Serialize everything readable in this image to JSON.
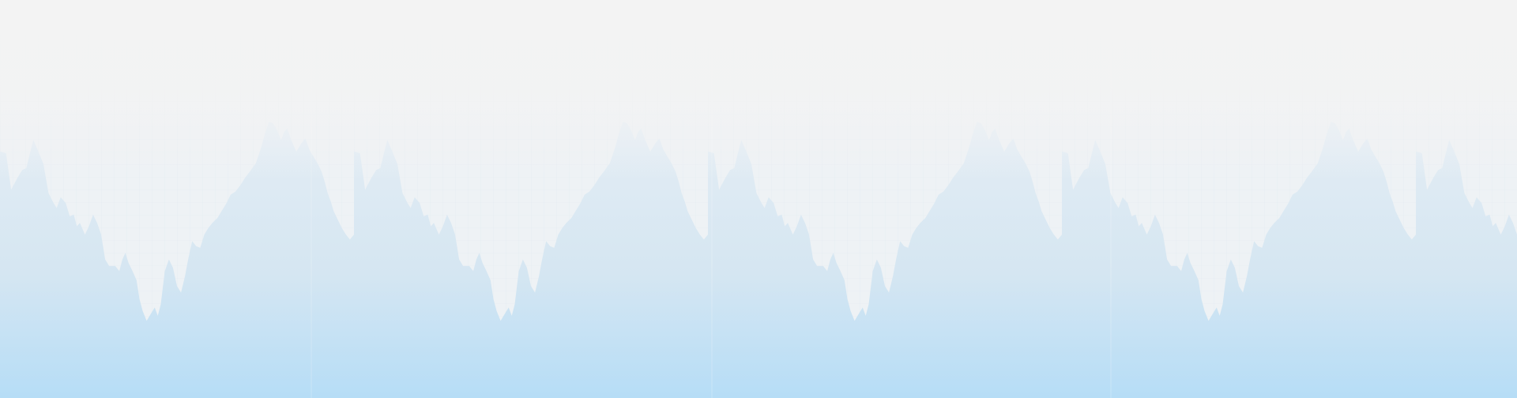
{
  "background": {
    "top_color": "#f3f3f3",
    "mountain_color_light": "#e4edf4",
    "mountain_color_mid": "#d5e6f2",
    "mountain_color_deep": "#b6ddf6",
    "grid_color": "#c9dbe8"
  }
}
